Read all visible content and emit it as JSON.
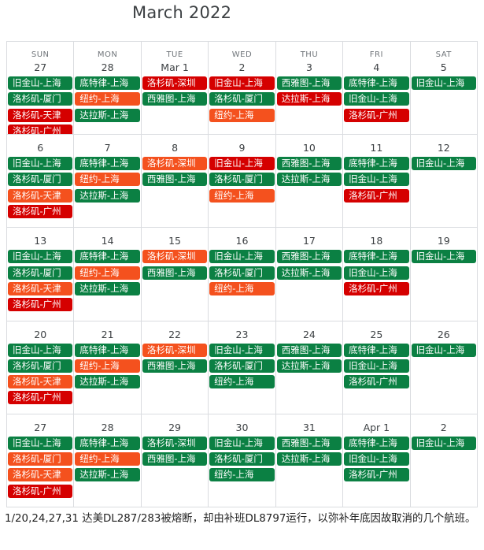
{
  "title": "March 2022",
  "weekdays": [
    "SUN",
    "MON",
    "TUE",
    "WED",
    "THU",
    "FRI",
    "SAT"
  ],
  "colors": {
    "green": "#0b8043",
    "orange": "#f4511e",
    "red": "#d50000",
    "grid": "#dadce0"
  },
  "weeks": [
    [
      {
        "day": "27",
        "events": [
          {
            "t": "旧金山-上海",
            "c": "green"
          },
          {
            "t": "洛杉矶-厦门",
            "c": "green"
          },
          {
            "t": "洛杉矶-天津",
            "c": "red"
          },
          {
            "t": "洛杉矶-广州",
            "c": "red"
          }
        ]
      },
      {
        "day": "28",
        "events": [
          {
            "t": "底特律-上海",
            "c": "green"
          },
          {
            "t": "纽约-上海",
            "c": "orange"
          },
          {
            "t": "达拉斯-上海",
            "c": "green"
          }
        ]
      },
      {
        "day": "Mar 1",
        "events": [
          {
            "t": "洛杉矶-深圳",
            "c": "red"
          },
          {
            "t": "西雅图-上海",
            "c": "green"
          }
        ]
      },
      {
        "day": "2",
        "events": [
          {
            "t": "旧金山-上海",
            "c": "red"
          },
          {
            "t": "洛杉矶-厦门",
            "c": "green"
          },
          {
            "t": "纽约-上海",
            "c": "orange"
          }
        ]
      },
      {
        "day": "3",
        "events": [
          {
            "t": "西雅图-上海",
            "c": "green"
          },
          {
            "t": "达拉斯-上海",
            "c": "red"
          }
        ]
      },
      {
        "day": "4",
        "events": [
          {
            "t": "底特律-上海",
            "c": "green"
          },
          {
            "t": "旧金山-上海",
            "c": "green"
          },
          {
            "t": "洛杉矶-广州",
            "c": "red"
          }
        ]
      },
      {
        "day": "5",
        "events": [
          {
            "t": "旧金山-上海",
            "c": "green"
          }
        ]
      }
    ],
    [
      {
        "day": "6",
        "events": [
          {
            "t": "旧金山-上海",
            "c": "green"
          },
          {
            "t": "洛杉矶-厦门",
            "c": "green"
          },
          {
            "t": "洛杉矶-天津",
            "c": "orange"
          },
          {
            "t": "洛杉矶-广州",
            "c": "red"
          }
        ]
      },
      {
        "day": "7",
        "events": [
          {
            "t": "底特律-上海",
            "c": "green"
          },
          {
            "t": "纽约-上海",
            "c": "orange"
          },
          {
            "t": "达拉斯-上海",
            "c": "green"
          }
        ]
      },
      {
        "day": "8",
        "events": [
          {
            "t": "洛杉矶-深圳",
            "c": "orange"
          },
          {
            "t": "西雅图-上海",
            "c": "green"
          }
        ]
      },
      {
        "day": "9",
        "events": [
          {
            "t": "旧金山-上海",
            "c": "red"
          },
          {
            "t": "洛杉矶-厦门",
            "c": "green"
          },
          {
            "t": "纽约-上海",
            "c": "orange"
          }
        ]
      },
      {
        "day": "10",
        "events": [
          {
            "t": "西雅图-上海",
            "c": "green"
          },
          {
            "t": "达拉斯-上海",
            "c": "green"
          }
        ]
      },
      {
        "day": "11",
        "events": [
          {
            "t": "底特律-上海",
            "c": "green"
          },
          {
            "t": "旧金山-上海",
            "c": "green"
          },
          {
            "t": "洛杉矶-广州",
            "c": "red"
          }
        ]
      },
      {
        "day": "12",
        "events": [
          {
            "t": "旧金山-上海",
            "c": "green"
          }
        ]
      }
    ],
    [
      {
        "day": "13",
        "events": [
          {
            "t": "旧金山-上海",
            "c": "green"
          },
          {
            "t": "洛杉矶-厦门",
            "c": "green"
          },
          {
            "t": "洛杉矶-天津",
            "c": "orange"
          },
          {
            "t": "洛杉矶-广州",
            "c": "red"
          }
        ]
      },
      {
        "day": "14",
        "events": [
          {
            "t": "底特律-上海",
            "c": "green"
          },
          {
            "t": "纽约-上海",
            "c": "orange"
          },
          {
            "t": "达拉斯-上海",
            "c": "green"
          }
        ]
      },
      {
        "day": "15",
        "events": [
          {
            "t": "洛杉矶-深圳",
            "c": "orange"
          },
          {
            "t": "西雅图-上海",
            "c": "green"
          }
        ]
      },
      {
        "day": "16",
        "events": [
          {
            "t": "旧金山-上海",
            "c": "green"
          },
          {
            "t": "洛杉矶-厦门",
            "c": "green"
          },
          {
            "t": "纽约-上海",
            "c": "orange"
          }
        ]
      },
      {
        "day": "17",
        "events": [
          {
            "t": "西雅图-上海",
            "c": "green"
          },
          {
            "t": "达拉斯-上海",
            "c": "green"
          }
        ]
      },
      {
        "day": "18",
        "events": [
          {
            "t": "底特律-上海",
            "c": "green"
          },
          {
            "t": "旧金山-上海",
            "c": "green"
          },
          {
            "t": "洛杉矶-广州",
            "c": "red"
          }
        ]
      },
      {
        "day": "19",
        "events": [
          {
            "t": "旧金山-上海",
            "c": "green"
          }
        ]
      }
    ],
    [
      {
        "day": "20",
        "events": [
          {
            "t": "旧金山-上海",
            "c": "green"
          },
          {
            "t": "洛杉矶-厦门",
            "c": "green"
          },
          {
            "t": "洛杉矶-天津",
            "c": "orange"
          },
          {
            "t": "洛杉矶-广州",
            "c": "red"
          }
        ]
      },
      {
        "day": "21",
        "events": [
          {
            "t": "底特律-上海",
            "c": "green"
          },
          {
            "t": "纽约-上海",
            "c": "orange"
          },
          {
            "t": "达拉斯-上海",
            "c": "green"
          }
        ]
      },
      {
        "day": "22",
        "events": [
          {
            "t": "洛杉矶-深圳",
            "c": "orange"
          },
          {
            "t": "西雅图-上海",
            "c": "green"
          }
        ]
      },
      {
        "day": "23",
        "events": [
          {
            "t": "旧金山-上海",
            "c": "green"
          },
          {
            "t": "洛杉矶-厦门",
            "c": "green"
          },
          {
            "t": "纽约-上海",
            "c": "green"
          }
        ]
      },
      {
        "day": "24",
        "events": [
          {
            "t": "西雅图-上海",
            "c": "green"
          },
          {
            "t": "达拉斯-上海",
            "c": "green"
          }
        ]
      },
      {
        "day": "25",
        "events": [
          {
            "t": "底特律-上海",
            "c": "green"
          },
          {
            "t": "旧金山-上海",
            "c": "green"
          },
          {
            "t": "洛杉矶-广州",
            "c": "green"
          }
        ]
      },
      {
        "day": "26",
        "events": [
          {
            "t": "旧金山-上海",
            "c": "green"
          }
        ]
      }
    ],
    [
      {
        "day": "27",
        "events": [
          {
            "t": "旧金山-上海",
            "c": "green"
          },
          {
            "t": "洛杉矶-厦门",
            "c": "orange"
          },
          {
            "t": "洛杉矶-天津",
            "c": "orange"
          },
          {
            "t": "洛杉矶-广州",
            "c": "red"
          }
        ]
      },
      {
        "day": "28",
        "events": [
          {
            "t": "底特律-上海",
            "c": "green"
          },
          {
            "t": "纽约-上海",
            "c": "orange"
          },
          {
            "t": "达拉斯-上海",
            "c": "green"
          }
        ]
      },
      {
        "day": "29",
        "events": [
          {
            "t": "洛杉矶-深圳",
            "c": "green"
          },
          {
            "t": "西雅图-上海",
            "c": "green"
          }
        ]
      },
      {
        "day": "30",
        "events": [
          {
            "t": "旧金山-上海",
            "c": "green"
          },
          {
            "t": "洛杉矶-厦门",
            "c": "green"
          },
          {
            "t": "纽约-上海",
            "c": "green"
          }
        ]
      },
      {
        "day": "31",
        "events": [
          {
            "t": "西雅图-上海",
            "c": "green"
          },
          {
            "t": "达拉斯-上海",
            "c": "green"
          }
        ]
      },
      {
        "day": "Apr 1",
        "events": [
          {
            "t": "底特律-上海",
            "c": "green"
          },
          {
            "t": "旧金山-上海",
            "c": "green"
          },
          {
            "t": "洛杉矶-广州",
            "c": "green"
          }
        ]
      },
      {
        "day": "2",
        "events": [
          {
            "t": "旧金山-上海",
            "c": "green"
          }
        ]
      }
    ]
  ],
  "footnote": "1/20,24,27,31 达美DL287/283被熔断，却由补班DL8797运行，以弥补年底因故取消的几个航班。"
}
